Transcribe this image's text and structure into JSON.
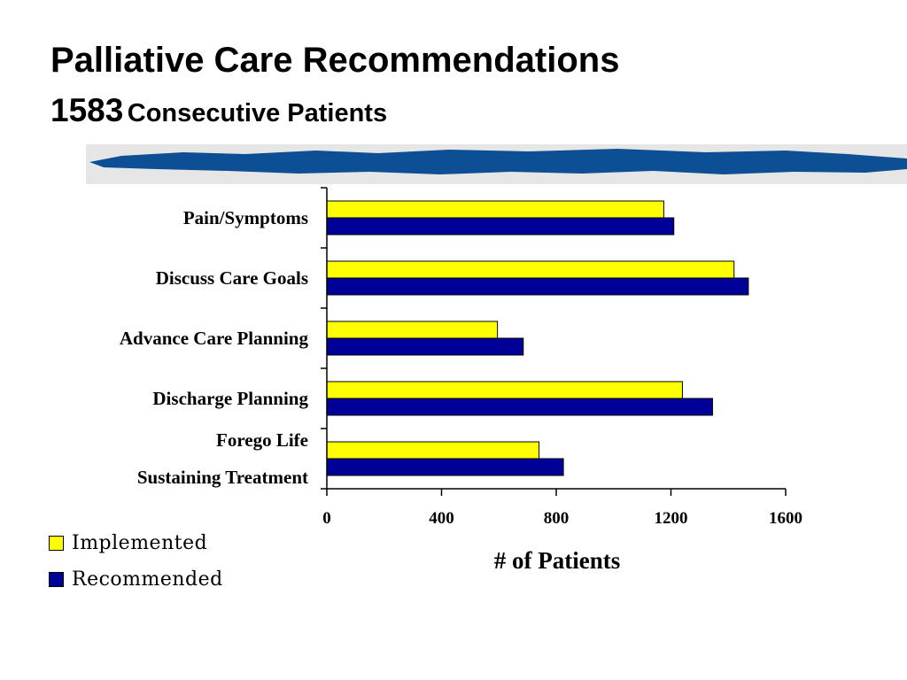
{
  "slide": {
    "title": "Palliative Care Recommendations",
    "subtitle_number": "1583",
    "subtitle_text": "Consecutive Patients"
  },
  "colors": {
    "implemented": "#ffff00",
    "recommended": "#000099",
    "banner": "#0d4f94"
  },
  "chart_data": {
    "type": "bar",
    "orientation": "horizontal",
    "categories": [
      [
        "Pain/Symptoms"
      ],
      [
        "Discuss Care Goals"
      ],
      [
        "Advance Care Planning"
      ],
      [
        "Discharge Planning"
      ],
      [
        "Forego Life",
        "Sustaining Treatment"
      ]
    ],
    "series": [
      {
        "name": "Implemented",
        "values": [
          1175,
          1420,
          595,
          1240,
          740
        ]
      },
      {
        "name": "Recommended",
        "values": [
          1210,
          1470,
          685,
          1345,
          825
        ]
      }
    ],
    "xlim": [
      0,
      1600
    ],
    "xticks": [
      "0",
      "400",
      "800",
      "1200",
      "1600"
    ],
    "xlabel": "# of Patients",
    "ylabel": "",
    "legend": "bottom-left"
  }
}
